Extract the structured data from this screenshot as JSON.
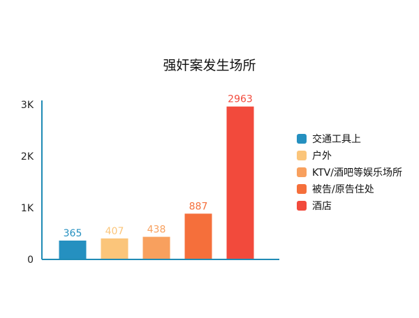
{
  "chart_data": {
    "type": "bar",
    "title": "强奸案发生场所",
    "categories": [
      "交通工具上",
      "户外",
      "KTV/酒吧等娱乐场所",
      "被告/原告住处",
      "酒店"
    ],
    "values": [
      365,
      407,
      438,
      887,
      2963
    ],
    "colors": [
      "#2590c0",
      "#fbc57a",
      "#f8a05e",
      "#f56f3b",
      "#f24a3c"
    ],
    "ylim": [
      0,
      3000
    ],
    "yticks": [
      0,
      1000,
      2000,
      3000
    ],
    "ytick_labels": [
      "0",
      "1K",
      "2K",
      "3K"
    ],
    "xlabel": "",
    "ylabel": "",
    "legend_position": "right",
    "axis_color": "#1f8bb5",
    "grid": false
  }
}
